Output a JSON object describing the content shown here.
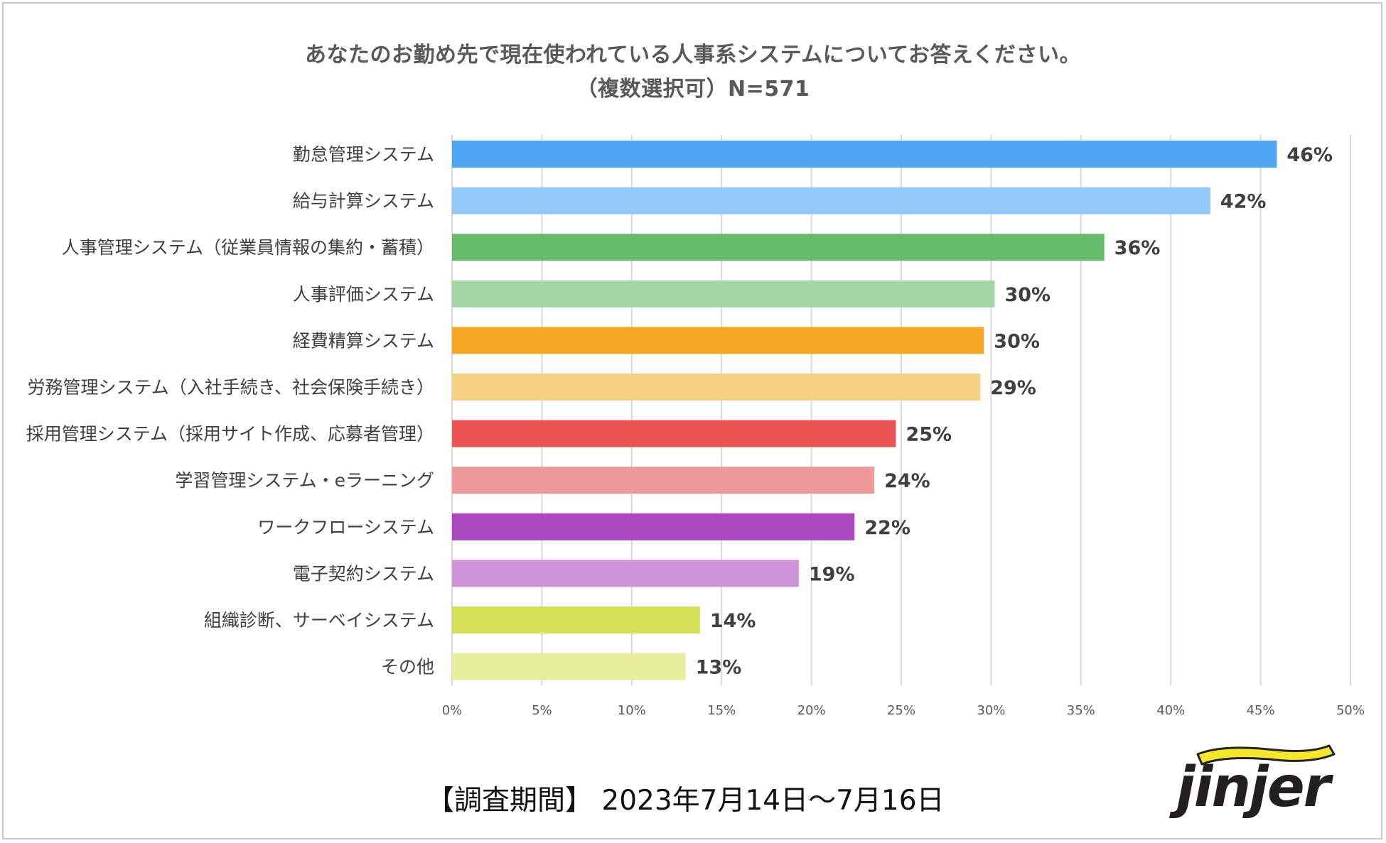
{
  "title": "あなたのお勤め先で現在使われている人事系システムについてお答えください。",
  "subtitle": "（複数選択可）N=571",
  "footer": "【調査期間】 2023年7月14日～7月16日",
  "brand": "jinjer",
  "colors": {
    "bars": [
      "#4ea6f5",
      "#93c9f8",
      "#66bb6a",
      "#a5d6a7",
      "#f5a623",
      "#f7cf85",
      "#ec5353",
      "#ef9a9a",
      "#ab47bc",
      "#ce93d8",
      "#d4e157",
      "#e6ee9c"
    ],
    "grid": "#d9d9d9",
    "logo_accent": "#f5e82a"
  },
  "chart_data": {
    "type": "bar",
    "orientation": "horizontal",
    "categories": [
      "勤怠管理システム",
      "給与計算システム",
      "人事管理システム（従業員情報の集約・蓄積）",
      "人事評価システム",
      "経費精算システム",
      "労務管理システム（入社手続き、社会保険手続き）",
      "採用管理システム（採用サイト作成、応募者管理）",
      "学習管理システム・eラーニング",
      "ワークフローシステム",
      "電子契約システム",
      "組織診断、サーベイシステム",
      "その他"
    ],
    "values": [
      45.9,
      42.2,
      36.3,
      30.2,
      29.6,
      29.4,
      24.7,
      23.5,
      22.4,
      19.3,
      13.8,
      13.0
    ],
    "value_labels": [
      "46%",
      "42%",
      "36%",
      "30%",
      "30%",
      "29%",
      "25%",
      "24%",
      "22%",
      "19%",
      "14%",
      "13%"
    ],
    "xlim": [
      0,
      50
    ],
    "xticks": [
      0,
      5,
      10,
      15,
      20,
      25,
      30,
      35,
      40,
      45,
      50
    ],
    "xtick_labels": [
      "0%",
      "5%",
      "10%",
      "15%",
      "20%",
      "25%",
      "30%",
      "35%",
      "40%",
      "45%",
      "50%"
    ],
    "grid": true,
    "legend": "none"
  }
}
